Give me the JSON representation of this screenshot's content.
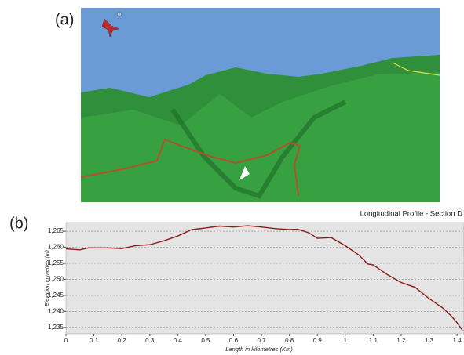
{
  "panel_labels": [
    "(a)",
    "(b)"
  ],
  "chart_data": {
    "type": "line",
    "title": "Longitudinal Profile - Section D",
    "x_label": "Length in kilometres (Km)",
    "y_label": "Elevation in metres (m)",
    "x": [
      0,
      0.05,
      0.08,
      0.15,
      0.2,
      0.25,
      0.3,
      0.35,
      0.4,
      0.45,
      0.5,
      0.55,
      0.6,
      0.65,
      0.7,
      0.75,
      0.8,
      0.83,
      0.87,
      0.9,
      0.95,
      1.0,
      1.05,
      1.08,
      1.1,
      1.15,
      1.2,
      1.25,
      1.3,
      1.35,
      1.38,
      1.4,
      1.42
    ],
    "series": [
      {
        "name": null,
        "color": "#8b1a1a",
        "values": [
          1259.5,
          1259.2,
          1259.8,
          1259.8,
          1259.6,
          1260.5,
          1260.8,
          1262,
          1263.5,
          1265.5,
          1266,
          1266.6,
          1266.3,
          1266.7,
          1266.3,
          1265.8,
          1265.5,
          1265.6,
          1264.5,
          1262.8,
          1263,
          1260.5,
          1257.5,
          1254.8,
          1254.5,
          1251.5,
          1249,
          1247.5,
          1244,
          1241,
          1238.5,
          1236.5,
          1234
        ]
      }
    ],
    "xlim": [
      0,
      1.425
    ],
    "ylim": [
      1233,
      1267.7
    ],
    "xticks": [
      0,
      0.1,
      0.2,
      0.3,
      0.4,
      0.5,
      0.6,
      0.7,
      0.8,
      0.9,
      1,
      1.1,
      1.2,
      1.3,
      1.4
    ],
    "yticks": [
      {
        "value": 1235,
        "label": "1,235"
      },
      {
        "value": 1240,
        "label": "1,240"
      },
      {
        "value": 1245,
        "label": "1,245"
      },
      {
        "value": 1250,
        "label": "1,250"
      },
      {
        "value": 1255,
        "label": "1,255"
      },
      {
        "value": 1260,
        "label": "1,260"
      },
      {
        "value": 1265,
        "label": "1,265"
      }
    ],
    "grid": true
  }
}
